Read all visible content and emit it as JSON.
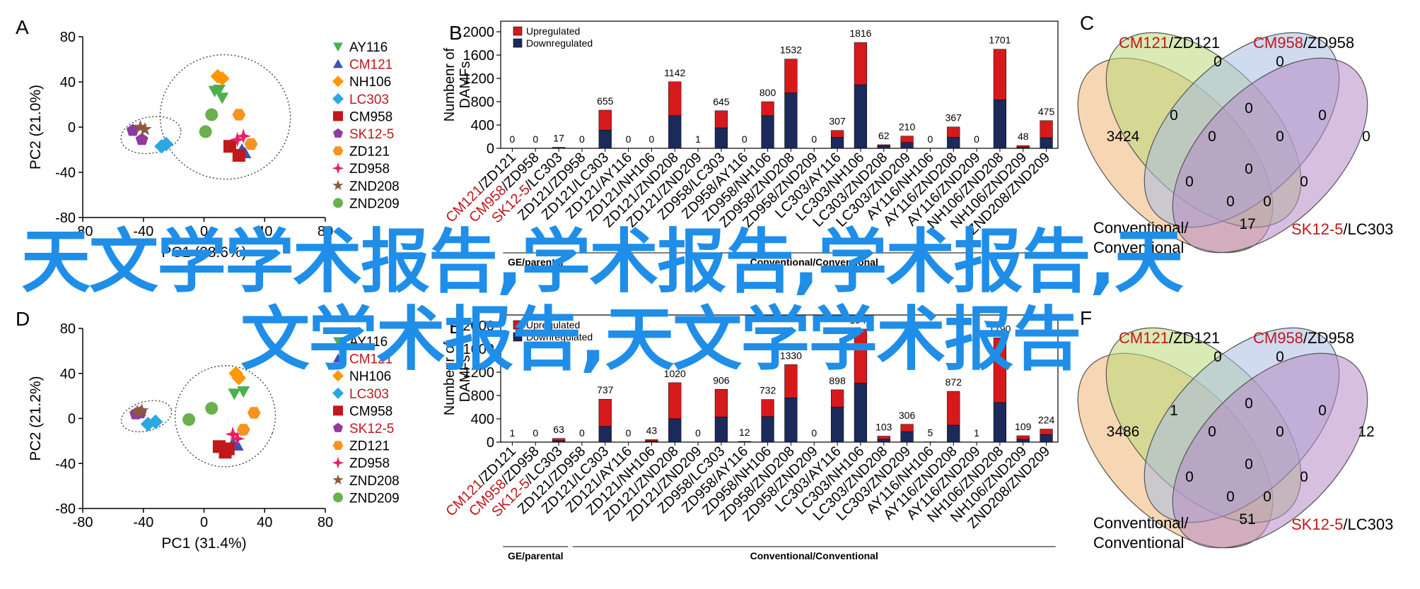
{
  "colors": {
    "up": "#d7191c",
    "down": "#1b2a5a",
    "red_text": "#c0181b",
    "overlay": "#1f8ee8",
    "venn": [
      "#f0b774",
      "#b9d879",
      "#a9bde3",
      "#b48bc4"
    ]
  },
  "overlay": {
    "line1": "天文学学术报告,学术报告,学术报告,天",
    "line2": "文学术报告,天文学学术报告"
  },
  "legend_items": [
    {
      "label": "AY116",
      "marker": "triangle-down",
      "color": "#4caf50",
      "red": false
    },
    {
      "label": "CM121",
      "marker": "triangle-up",
      "color": "#3f51b5",
      "red": true
    },
    {
      "label": "NH106",
      "marker": "diamond",
      "color": "#ff9800",
      "red": false
    },
    {
      "label": "LC303",
      "marker": "diamond",
      "color": "#29a9e0",
      "red": true
    },
    {
      "label": "CM958",
      "marker": "square",
      "color": "#c0181b",
      "red": false
    },
    {
      "label": "SK12-5",
      "marker": "pentagon",
      "color": "#8e3a9e",
      "red": true
    },
    {
      "label": "ZD121",
      "marker": "hexagon",
      "color": "#f7931e",
      "red": false
    },
    {
      "label": "ZD958",
      "marker": "star4",
      "color": "#e91e63",
      "red": false
    },
    {
      "label": "ZND208",
      "marker": "star5",
      "color": "#8b5a3c",
      "red": false
    },
    {
      "label": "ZND209",
      "marker": "circle",
      "color": "#6ab04c",
      "red": false
    }
  ],
  "bar_categories": [
    {
      "pre": "",
      "red": "CM121",
      "post": "/ZD121"
    },
    {
      "pre": "",
      "red": "CM958",
      "post": "/ZD958"
    },
    {
      "pre": "",
      "red": "SK12-5",
      "post": "/LC303"
    },
    {
      "pre": "ZD121/ZD958",
      "red": "",
      "post": ""
    },
    {
      "pre": "ZD121/LC303",
      "red": "",
      "post": ""
    },
    {
      "pre": "ZD121/AY116",
      "red": "",
      "post": ""
    },
    {
      "pre": "ZD121/NH106",
      "red": "",
      "post": ""
    },
    {
      "pre": "ZD121/ZND208",
      "red": "",
      "post": ""
    },
    {
      "pre": "ZD121/ZND209",
      "red": "",
      "post": ""
    },
    {
      "pre": "ZD958/LC303",
      "red": "",
      "post": ""
    },
    {
      "pre": "ZD958/AY116",
      "red": "",
      "post": ""
    },
    {
      "pre": "ZD958/NH106",
      "red": "",
      "post": ""
    },
    {
      "pre": "ZD958/ZND208",
      "red": "",
      "post": ""
    },
    {
      "pre": "ZD958/ZND209",
      "red": "",
      "post": ""
    },
    {
      "pre": "LC303/AY116",
      "red": "",
      "post": ""
    },
    {
      "pre": "LC303/NH106",
      "red": "",
      "post": ""
    },
    {
      "pre": "LC303/ZND208",
      "red": "",
      "post": ""
    },
    {
      "pre": "LC303/ZND209",
      "red": "",
      "post": ""
    },
    {
      "pre": "AY116/NH106",
      "red": "",
      "post": ""
    },
    {
      "pre": "AY116/ZND208",
      "red": "",
      "post": ""
    },
    {
      "pre": "AY116/ZND209",
      "red": "",
      "post": ""
    },
    {
      "pre": "NH106/ZND208",
      "red": "",
      "post": ""
    },
    {
      "pre": "NH106/ZND209",
      "red": "",
      "post": ""
    },
    {
      "pre": "ZND208/ZND209",
      "red": "",
      "post": ""
    }
  ],
  "group_labels": {
    "g1": "GE/parental",
    "g2": "Conventional/Conventional"
  },
  "venn_labels": {
    "tl_red": "CM121",
    "tl": "/ZD121",
    "tr_red": "CM958",
    "tr": "/ZD958",
    "bl1": "Conventional/",
    "bl2": "Conventional",
    "br_red": "SK12-5",
    "br": "/LC303"
  },
  "chart_data": [
    {
      "panel": "A",
      "type": "scatter",
      "xlabel": "PC1 (28.6%)",
      "ylabel": "PC2 (21.0%)",
      "xlim": [
        -80,
        80
      ],
      "ylim": [
        -80,
        80
      ],
      "xticks": [
        -80,
        -40,
        0,
        40,
        80
      ],
      "yticks": [
        -80,
        -40,
        0,
        40,
        80
      ],
      "points": [
        {
          "s": 0,
          "x": 7,
          "y": 32
        },
        {
          "s": 0,
          "x": 12,
          "y": 26
        },
        {
          "s": 0,
          "x": 10,
          "y": 33
        },
        {
          "s": 1,
          "x": 27,
          "y": -23
        },
        {
          "s": 1,
          "x": 25,
          "y": -20
        },
        {
          "s": 2,
          "x": 9,
          "y": 45
        },
        {
          "s": 2,
          "x": 12,
          "y": 43
        },
        {
          "s": 3,
          "x": -28,
          "y": -17
        },
        {
          "s": 3,
          "x": -25,
          "y": -15
        },
        {
          "s": 4,
          "x": 17,
          "y": -17
        },
        {
          "s": 4,
          "x": 23,
          "y": -25
        },
        {
          "s": 5,
          "x": -47,
          "y": -3
        },
        {
          "s": 5,
          "x": -41,
          "y": -11
        },
        {
          "s": 6,
          "x": 23,
          "y": 11
        },
        {
          "s": 6,
          "x": 31,
          "y": -15
        },
        {
          "s": 7,
          "x": 22,
          "y": -11
        },
        {
          "s": 7,
          "x": 26,
          "y": -8
        },
        {
          "s": 8,
          "x": -42,
          "y": 0
        },
        {
          "s": 8,
          "x": -39,
          "y": -2
        },
        {
          "s": 9,
          "x": 5,
          "y": 11
        },
        {
          "s": 9,
          "x": 1,
          "y": -4
        }
      ],
      "ellipses": [
        {
          "cx": -35,
          "cy": -7,
          "rx": 20,
          "ry": 16,
          "angle": -10
        },
        {
          "cx": 14,
          "cy": 9,
          "rx": 43,
          "ry": 55,
          "angle": 8
        }
      ]
    },
    {
      "panel": "B",
      "type": "bar",
      "ylabel": "Numbenr of DAMFs",
      "ylim": [
        0,
        2000
      ],
      "yticks": [
        0,
        400,
        800,
        1200,
        1600,
        2000
      ],
      "legend": [
        "Upregulated",
        "Downregulated"
      ],
      "totals": [
        0,
        0,
        17,
        0,
        655,
        0,
        0,
        1142,
        1,
        645,
        0,
        800,
        1532,
        0,
        307,
        1816,
        62,
        210,
        0,
        367,
        0,
        1701,
        48,
        475
      ],
      "down": [
        0,
        0,
        10,
        0,
        310,
        0,
        0,
        560,
        0,
        350,
        0,
        560,
        950,
        0,
        190,
        1090,
        45,
        100,
        0,
        190,
        0,
        830,
        20,
        180
      ]
    },
    {
      "panel": "C",
      "type": "venn",
      "values": {
        "r1": "0",
        "r2": "0",
        "r3": "0",
        "r4": "0",
        "r5": "3424",
        "r6": "0",
        "r7": "0",
        "r8": "0",
        "r9": "0",
        "r10": "0",
        "r11": "0",
        "r12": "0",
        "r13": "0",
        "r14": "0",
        "r15": "17"
      }
    },
    {
      "panel": "D",
      "type": "scatter",
      "xlabel": "PC1 (31.4%)",
      "ylabel": "PC2 (21.2%)",
      "xlim": [
        -80,
        80
      ],
      "ylim": [
        -80,
        80
      ],
      "xticks": [
        -80,
        -40,
        0,
        40,
        80
      ],
      "yticks": [
        -80,
        -40,
        0,
        40,
        80
      ],
      "points": [
        {
          "s": 0,
          "x": 20,
          "y": 22
        },
        {
          "s": 0,
          "x": 26,
          "y": 24
        },
        {
          "s": 1,
          "x": 19,
          "y": -22
        },
        {
          "s": 1,
          "x": 22,
          "y": -24
        },
        {
          "s": 2,
          "x": 21,
          "y": 40
        },
        {
          "s": 2,
          "x": 23,
          "y": 36
        },
        {
          "s": 3,
          "x": -37,
          "y": -5
        },
        {
          "s": 3,
          "x": -32,
          "y": -3
        },
        {
          "s": 4,
          "x": 10,
          "y": -25
        },
        {
          "s": 4,
          "x": 16,
          "y": -27
        },
        {
          "s": 4,
          "x": 14,
          "y": -30
        },
        {
          "s": 5,
          "x": -45,
          "y": 4
        },
        {
          "s": 5,
          "x": -42,
          "y": 5
        },
        {
          "s": 6,
          "x": 33,
          "y": 5
        },
        {
          "s": 6,
          "x": 26,
          "y": -10
        },
        {
          "s": 7,
          "x": 19,
          "y": -14
        },
        {
          "s": 7,
          "x": 22,
          "y": -18
        },
        {
          "s": 8,
          "x": -41,
          "y": 7
        },
        {
          "s": 8,
          "x": -44,
          "y": 6
        },
        {
          "s": 9,
          "x": 5,
          "y": 9
        },
        {
          "s": 9,
          "x": -10,
          "y": -1
        }
      ],
      "ellipses": [
        {
          "cx": -38,
          "cy": 2,
          "rx": 17,
          "ry": 13,
          "angle": -15
        },
        {
          "cx": 14,
          "cy": 2,
          "rx": 33,
          "ry": 45,
          "angle": 20
        }
      ]
    },
    {
      "panel": "E",
      "type": "bar",
      "ylabel": "Numbenr of DAMFs",
      "ylim": [
        0,
        2000
      ],
      "yticks": [
        0,
        400,
        800,
        1200,
        1600,
        2000
      ],
      "legend": [
        "Upregulated",
        "Downregulated"
      ],
      "totals": [
        1,
        0,
        63,
        0,
        737,
        0,
        43,
        1020,
        0,
        906,
        12,
        732,
        1330,
        0,
        898,
        1940,
        103,
        306,
        5,
        872,
        1,
        1790,
        109,
        224
      ],
      "down": [
        0,
        0,
        25,
        0,
        270,
        0,
        20,
        400,
        0,
        430,
        5,
        440,
        760,
        0,
        600,
        1010,
        50,
        180,
        2,
        290,
        0,
        680,
        50,
        130
      ]
    },
    {
      "panel": "F",
      "type": "venn",
      "values": {
        "r1": "0",
        "r2": "0",
        "r3": "1",
        "r4": "0",
        "r5": "3486",
        "r6": "0",
        "r7": "0",
        "r8": "0",
        "r9": "12",
        "r10": "0",
        "r11": "0",
        "r12": "0",
        "r13": "0",
        "r14": "0",
        "r15": "51"
      }
    }
  ]
}
